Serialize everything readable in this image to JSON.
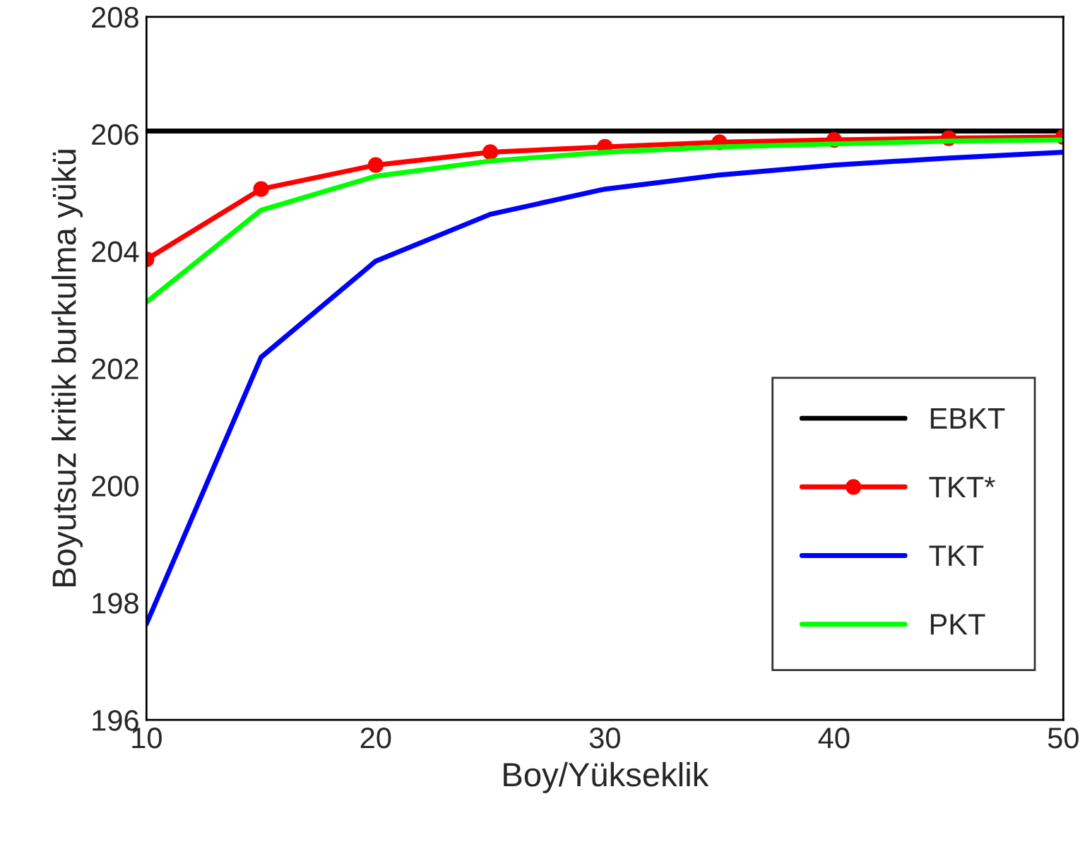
{
  "chart_data": {
    "type": "line",
    "xlabel": "Boy/Yükseklik",
    "ylabel": "Boyutsuz kritik burkulma yükü",
    "x": [
      10,
      15,
      20,
      25,
      30,
      35,
      40,
      45,
      50
    ],
    "series": [
      {
        "name": "EBKT",
        "color": "#000000",
        "marker": "none",
        "values": [
          206.05,
          206.05,
          206.05,
          206.05,
          206.05,
          206.05,
          206.05,
          206.05,
          206.05
        ]
      },
      {
        "name": "TKT*",
        "color": "#ff0000",
        "marker": "circle",
        "values": [
          203.86,
          205.06,
          205.47,
          205.69,
          205.78,
          205.86,
          205.9,
          205.93,
          205.95
        ]
      },
      {
        "name": "TKT",
        "color": "#0000ff",
        "marker": "none",
        "values": [
          197.64,
          202.19,
          203.83,
          204.63,
          205.06,
          205.3,
          205.47,
          205.59,
          205.69
        ]
      },
      {
        "name": "PKT",
        "color": "#00ff00",
        "marker": "none",
        "values": [
          203.13,
          204.7,
          205.28,
          205.54,
          205.69,
          205.78,
          205.83,
          205.88,
          205.9
        ]
      }
    ],
    "xlim": [
      10,
      50
    ],
    "xticks": [
      10,
      20,
      30,
      40,
      50
    ],
    "ylim": [
      196,
      208
    ],
    "yticks": [
      196,
      198,
      200,
      202,
      204,
      206,
      208
    ],
    "grid": false,
    "legend": "lower right",
    "line_style": "solid"
  }
}
